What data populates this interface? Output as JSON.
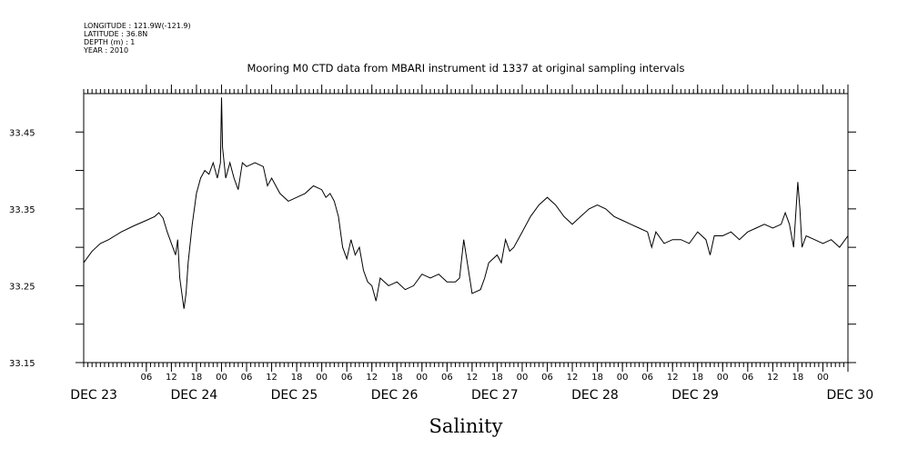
{
  "header": {
    "longitude": "LONGITUDE : 121.9W(-121.9)",
    "latitude": "LATITUDE : 36.8N",
    "depth": "DEPTH (m) : 1",
    "year": "YEAR : 2010"
  },
  "chart_data": {
    "type": "line",
    "title": "Mooring M0 CTD data from MBARI instrument id 1337 at original sampling intervals",
    "xlabel": "Salinity",
    "ylabel": "",
    "ylim": [
      33.15,
      33.5
    ],
    "yticks": [
      33.15,
      33.2,
      33.25,
      33.3,
      33.35,
      33.4,
      33.45
    ],
    "ytick_labels": [
      "33.15",
      "33.25",
      "33.35",
      "33.45"
    ],
    "xlim": [
      "2010-12-22T15:00",
      "2010-12-30T06:00"
    ],
    "hour_ticks": [
      "06",
      "12",
      "18",
      "00",
      "06",
      "12",
      "18",
      "00",
      "06",
      "12",
      "18",
      "00",
      "06",
      "12",
      "18",
      "00",
      "06",
      "12",
      "18",
      "00",
      "06",
      "12",
      "18",
      "00",
      "06",
      "12",
      "18",
      "00"
    ],
    "date_labels": [
      "DEC 23",
      "DEC 24",
      "DEC 25",
      "DEC 26",
      "DEC 27",
      "DEC 28",
      "DEC 29",
      "DEC 30"
    ],
    "series": [
      {
        "color": "#000000",
        "points": [
          [
            "2010-12-22T15:00",
            33.28
          ],
          [
            "2010-12-22T17:00",
            33.295
          ],
          [
            "2010-12-22T19:00",
            33.305
          ],
          [
            "2010-12-22T21:00",
            33.31
          ],
          [
            "2010-12-23T00:00",
            33.32
          ],
          [
            "2010-12-23T03:00",
            33.328
          ],
          [
            "2010-12-23T06:00",
            33.335
          ],
          [
            "2010-12-23T08:00",
            33.34
          ],
          [
            "2010-12-23T09:00",
            33.345
          ],
          [
            "2010-12-23T10:00",
            33.338
          ],
          [
            "2010-12-23T11:00",
            33.32
          ],
          [
            "2010-12-23T12:00",
            33.305
          ],
          [
            "2010-12-23T13:00",
            33.29
          ],
          [
            "2010-12-23T13:30",
            33.31
          ],
          [
            "2010-12-23T14:00",
            33.26
          ],
          [
            "2010-12-23T14:30",
            33.24
          ],
          [
            "2010-12-23T15:00",
            33.22
          ],
          [
            "2010-12-23T15:30",
            33.24
          ],
          [
            "2010-12-23T16:00",
            33.28
          ],
          [
            "2010-12-23T17:00",
            33.33
          ],
          [
            "2010-12-23T18:00",
            33.37
          ],
          [
            "2010-12-23T19:00",
            33.39
          ],
          [
            "2010-12-23T20:00",
            33.4
          ],
          [
            "2010-12-23T21:00",
            33.395
          ],
          [
            "2010-12-23T22:00",
            33.41
          ],
          [
            "2010-12-23T23:00",
            33.39
          ],
          [
            "2010-12-23T23:45",
            33.41
          ],
          [
            "2010-12-24T00:00",
            33.495
          ],
          [
            "2010-12-24T00:15",
            33.43
          ],
          [
            "2010-12-24T01:00",
            33.39
          ],
          [
            "2010-12-24T02:00",
            33.41
          ],
          [
            "2010-12-24T03:00",
            33.39
          ],
          [
            "2010-12-24T04:00",
            33.375
          ],
          [
            "2010-12-24T05:00",
            33.41
          ],
          [
            "2010-12-24T06:00",
            33.405
          ],
          [
            "2010-12-24T08:00",
            33.41
          ],
          [
            "2010-12-24T10:00",
            33.405
          ],
          [
            "2010-12-24T11:00",
            33.38
          ],
          [
            "2010-12-24T12:00",
            33.39
          ],
          [
            "2010-12-24T14:00",
            33.37
          ],
          [
            "2010-12-24T16:00",
            33.36
          ],
          [
            "2010-12-24T18:00",
            33.365
          ],
          [
            "2010-12-24T20:00",
            33.37
          ],
          [
            "2010-12-24T22:00",
            33.38
          ],
          [
            "2010-12-25T00:00",
            33.375
          ],
          [
            "2010-12-25T01:00",
            33.365
          ],
          [
            "2010-12-25T02:00",
            33.37
          ],
          [
            "2010-12-25T03:00",
            33.36
          ],
          [
            "2010-12-25T04:00",
            33.34
          ],
          [
            "2010-12-25T05:00",
            33.3
          ],
          [
            "2010-12-25T06:00",
            33.285
          ],
          [
            "2010-12-25T07:00",
            33.31
          ],
          [
            "2010-12-25T08:00",
            33.29
          ],
          [
            "2010-12-25T09:00",
            33.3
          ],
          [
            "2010-12-25T10:00",
            33.27
          ],
          [
            "2010-12-25T11:00",
            33.255
          ],
          [
            "2010-12-25T12:00",
            33.25
          ],
          [
            "2010-12-25T13:00",
            33.23
          ],
          [
            "2010-12-25T14:00",
            33.26
          ],
          [
            "2010-12-25T16:00",
            33.25
          ],
          [
            "2010-12-25T18:00",
            33.255
          ],
          [
            "2010-12-25T20:00",
            33.245
          ],
          [
            "2010-12-25T22:00",
            33.25
          ],
          [
            "2010-12-26T00:00",
            33.265
          ],
          [
            "2010-12-26T02:00",
            33.26
          ],
          [
            "2010-12-26T04:00",
            33.265
          ],
          [
            "2010-12-26T06:00",
            33.255
          ],
          [
            "2010-12-26T08:00",
            33.255
          ],
          [
            "2010-12-26T09:00",
            33.26
          ],
          [
            "2010-12-26T10:00",
            33.31
          ],
          [
            "2010-12-26T11:00",
            33.275
          ],
          [
            "2010-12-26T12:00",
            33.24
          ],
          [
            "2010-12-26T14:00",
            33.245
          ],
          [
            "2010-12-26T15:00",
            33.26
          ],
          [
            "2010-12-26T16:00",
            33.28
          ],
          [
            "2010-12-26T18:00",
            33.29
          ],
          [
            "2010-12-26T19:00",
            33.28
          ],
          [
            "2010-12-26T20:00",
            33.31
          ],
          [
            "2010-12-26T21:00",
            33.295
          ],
          [
            "2010-12-26T22:00",
            33.3
          ],
          [
            "2010-12-27T00:00",
            33.32
          ],
          [
            "2010-12-27T02:00",
            33.34
          ],
          [
            "2010-12-27T04:00",
            33.355
          ],
          [
            "2010-12-27T06:00",
            33.365
          ],
          [
            "2010-12-27T08:00",
            33.355
          ],
          [
            "2010-12-27T10:00",
            33.34
          ],
          [
            "2010-12-27T12:00",
            33.33
          ],
          [
            "2010-12-27T14:00",
            33.34
          ],
          [
            "2010-12-27T16:00",
            33.35
          ],
          [
            "2010-12-27T18:00",
            33.355
          ],
          [
            "2010-12-27T20:00",
            33.35
          ],
          [
            "2010-12-27T22:00",
            33.34
          ],
          [
            "2010-12-28T00:00",
            33.335
          ],
          [
            "2010-12-28T02:00",
            33.33
          ],
          [
            "2010-12-28T04:00",
            33.325
          ],
          [
            "2010-12-28T06:00",
            33.32
          ],
          [
            "2010-12-28T07:00",
            33.3
          ],
          [
            "2010-12-28T08:00",
            33.32
          ],
          [
            "2010-12-28T10:00",
            33.305
          ],
          [
            "2010-12-28T12:00",
            33.31
          ],
          [
            "2010-12-28T14:00",
            33.31
          ],
          [
            "2010-12-28T16:00",
            33.305
          ],
          [
            "2010-12-28T18:00",
            33.32
          ],
          [
            "2010-12-28T20:00",
            33.31
          ],
          [
            "2010-12-28T21:00",
            33.29
          ],
          [
            "2010-12-28T22:00",
            33.315
          ],
          [
            "2010-12-29T00:00",
            33.315
          ],
          [
            "2010-12-29T02:00",
            33.32
          ],
          [
            "2010-12-29T04:00",
            33.31
          ],
          [
            "2010-12-29T06:00",
            33.32
          ],
          [
            "2010-12-29T08:00",
            33.325
          ],
          [
            "2010-12-29T10:00",
            33.33
          ],
          [
            "2010-12-29T12:00",
            33.325
          ],
          [
            "2010-12-29T14:00",
            33.33
          ],
          [
            "2010-12-29T15:00",
            33.345
          ],
          [
            "2010-12-29T16:00",
            33.33
          ],
          [
            "2010-12-29T17:00",
            33.3
          ],
          [
            "2010-12-29T18:00",
            33.385
          ],
          [
            "2010-12-29T18:30",
            33.35
          ],
          [
            "2010-12-29T19:00",
            33.3
          ],
          [
            "2010-12-29T20:00",
            33.315
          ],
          [
            "2010-12-29T22:00",
            33.31
          ],
          [
            "2010-12-30T00:00",
            33.305
          ],
          [
            "2010-12-30T02:00",
            33.31
          ],
          [
            "2010-12-30T04:00",
            33.3
          ],
          [
            "2010-12-30T06:00",
            33.315
          ]
        ]
      }
    ]
  }
}
